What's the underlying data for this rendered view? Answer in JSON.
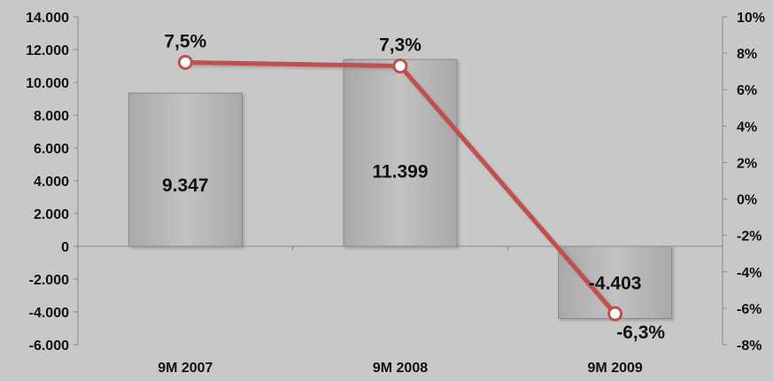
{
  "chart_data": {
    "type": "bar",
    "categories": [
      "9M 2007",
      "9M 2008",
      "9M 2009"
    ],
    "series": [
      {
        "type": "bar",
        "axis": "left",
        "values": [
          9347,
          11399,
          -4403
        ],
        "value_labels": [
          "9.347",
          "11.399",
          "-4.403"
        ]
      },
      {
        "type": "line",
        "axis": "right",
        "values": [
          7.5,
          7.3,
          -6.3
        ],
        "value_labels": [
          "7,5%",
          "7,3%",
          "-6,3%"
        ]
      }
    ],
    "y_left": {
      "ylim": [
        -6000,
        14000
      ],
      "ticks": [
        14000,
        12000,
        10000,
        8000,
        6000,
        4000,
        2000,
        0,
        -2000,
        -4000,
        -6000
      ],
      "tick_labels": [
        "14.000",
        "12.000",
        "10.000",
        "8.000",
        "6.000",
        "4.000",
        "2.000",
        "0",
        "-2.000",
        "-4.000",
        "-6.000"
      ]
    },
    "y_right": {
      "ylim": [
        -8,
        10
      ],
      "ticks": [
        10,
        8,
        6,
        4,
        2,
        0,
        -2,
        -4,
        -6,
        -8
      ],
      "tick_labels": [
        "10%",
        "8%",
        "6%",
        "4%",
        "2%",
        "0%",
        "-2%",
        "-4%",
        "-6%",
        "-8%"
      ]
    },
    "grid": false,
    "colors": {
      "background": "#c8c8c8",
      "bar_fill": "#b4b4b4",
      "bar_edge": "#8a8a8a",
      "line": "#c0504d",
      "marker_fill": "#ffffff",
      "axis": "#888888"
    }
  }
}
